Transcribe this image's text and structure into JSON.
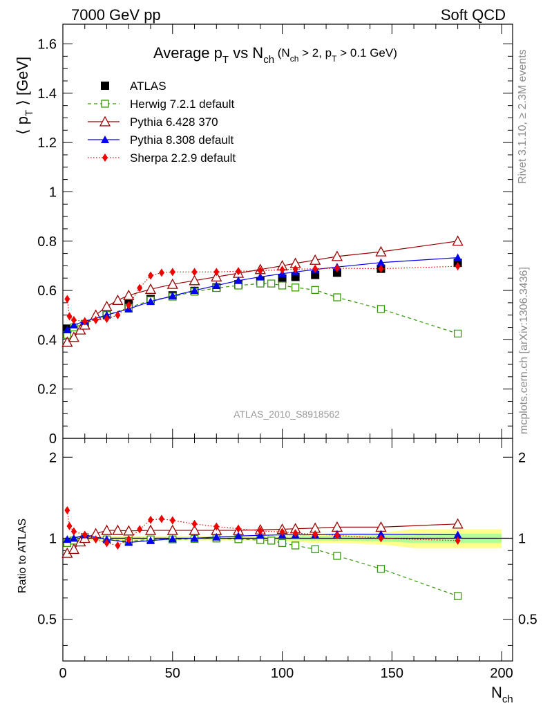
{
  "header": {
    "left": "7000 GeV pp",
    "right": "Soft QCD"
  },
  "title": {
    "main": "Average p",
    "main_sub": "T",
    "vs": " vs N",
    "vs_sub": "ch",
    "cut_open": " (N",
    "cut_sub1": "ch",
    "cut_mid": " > 2, p",
    "cut_sub2": "T",
    "cut_close": " > 0.1 GeV)"
  },
  "ylabel_main": {
    "open": "⟨ p",
    "sub": "T",
    "close": " ⟩  [GeV]"
  },
  "ylabel_ratio": "Ratio to ATLAS",
  "xlabel": {
    "main": "N",
    "sub": "ch"
  },
  "side_labels": {
    "rivet": "Rivet 3.1.10, ≥ 2.3M events",
    "mcplots": "mcplots.cern.ch [arXiv:1306.3436]"
  },
  "analysis_id": "ATLAS_2010_S8918562",
  "colors": {
    "atlas": "#000000",
    "herwig": "#339900",
    "pythia6": "#990000",
    "pythia8": "#0000ee",
    "sherpa": "#ee0000",
    "band_inner": "#b2ff99",
    "band_outer": "#ffff8c"
  },
  "legend_placement": "top-left",
  "chart_data": [
    {
      "type": "scatter",
      "panel": "main",
      "xlim": [
        0,
        205
      ],
      "ylim": [
        0,
        1.68
      ],
      "yticks": [
        0,
        0.2,
        0.4,
        0.6,
        0.8,
        1,
        1.2,
        1.4,
        1.6
      ],
      "ytick_labels": [
        "0",
        "0.2",
        "0.4",
        "0.6",
        "0.8",
        "1",
        "1.2",
        "1.4",
        "1.6"
      ],
      "series": [
        {
          "name": "ATLAS",
          "marker": "filled-square",
          "x": [
            2,
            10,
            20,
            30,
            40,
            50,
            60,
            70,
            80,
            90,
            100,
            106,
            115,
            125,
            145,
            180
          ],
          "y": [
            0.445,
            0.46,
            0.505,
            0.545,
            0.565,
            0.58,
            0.598,
            0.612,
            0.625,
            0.638,
            0.648,
            0.655,
            0.663,
            0.672,
            0.688,
            0.712
          ]
        },
        {
          "name": "Herwig 7.2.1 default",
          "marker": "open-square",
          "line": "dashed",
          "x": [
            2,
            5,
            10,
            20,
            30,
            40,
            50,
            60,
            70,
            80,
            90,
            95,
            100,
            106,
            115,
            125,
            145,
            180
          ],
          "y": [
            0.42,
            0.45,
            0.465,
            0.5,
            0.53,
            0.56,
            0.575,
            0.595,
            0.61,
            0.62,
            0.628,
            0.628,
            0.62,
            0.612,
            0.602,
            0.572,
            0.525,
            0.425
          ]
        },
        {
          "name": "Pythia 6.428 370",
          "marker": "open-triangle",
          "line": "solid",
          "x": [
            2,
            5,
            8,
            10,
            15,
            20,
            25,
            30,
            40,
            50,
            60,
            70,
            80,
            90,
            100,
            106,
            115,
            125,
            145,
            180
          ],
          "y": [
            0.39,
            0.41,
            0.44,
            0.46,
            0.5,
            0.535,
            0.56,
            0.58,
            0.605,
            0.625,
            0.64,
            0.655,
            0.67,
            0.685,
            0.7,
            0.71,
            0.723,
            0.738,
            0.757,
            0.8
          ]
        },
        {
          "name": "Pythia 8.308 default",
          "marker": "filled-triangle",
          "line": "solid",
          "x": [
            2,
            5,
            10,
            20,
            30,
            40,
            50,
            60,
            70,
            80,
            90,
            100,
            106,
            115,
            125,
            145,
            180
          ],
          "y": [
            0.44,
            0.46,
            0.475,
            0.5,
            0.525,
            0.555,
            0.578,
            0.6,
            0.62,
            0.64,
            0.655,
            0.668,
            0.675,
            0.685,
            0.695,
            0.713,
            0.733
          ]
        },
        {
          "name": "Sherpa 2.2.9 default",
          "marker": "filled-diamond",
          "line": "dotted",
          "x": [
            2,
            3,
            5,
            10,
            15,
            20,
            25,
            30,
            35,
            40,
            45,
            50,
            60,
            70,
            80,
            90,
            100,
            106,
            115,
            125,
            145,
            180
          ],
          "y": [
            0.565,
            0.495,
            0.48,
            0.475,
            0.48,
            0.485,
            0.5,
            0.54,
            0.61,
            0.66,
            0.672,
            0.675,
            0.675,
            0.675,
            0.678,
            0.68,
            0.684,
            0.686,
            0.688,
            0.69,
            0.688,
            0.698
          ]
        }
      ]
    },
    {
      "type": "scatter",
      "panel": "ratio",
      "ylabel": "Ratio to ATLAS",
      "xlabel": "Nch",
      "xlim": [
        0,
        205
      ],
      "ylim": [
        0.35,
        2.35
      ],
      "yscale": "log",
      "xticks": [
        0,
        50,
        100,
        150,
        200
      ],
      "xtick_labels": [
        "0",
        "50",
        "100",
        "150",
        "200"
      ],
      "yticks": [
        0.5,
        1,
        2
      ],
      "ytick_labels": [
        "0.5",
        "1",
        "2"
      ],
      "reference_band": {
        "x": [
          2,
          100,
          106,
          115,
          125,
          145,
          160,
          180,
          200
        ],
        "inner": [
          0.01,
          0.01,
          0.015,
          0.02,
          0.02,
          0.025,
          0.04,
          0.04,
          0.04
        ],
        "outer": [
          0.02,
          0.02,
          0.03,
          0.04,
          0.04,
          0.05,
          0.08,
          0.08,
          0.08
        ]
      },
      "series": [
        {
          "name": "Herwig 7.2.1 default",
          "x": [
            2,
            5,
            10,
            20,
            30,
            40,
            50,
            60,
            70,
            80,
            90,
            95,
            100,
            106,
            115,
            125,
            145,
            180
          ],
          "y": [
            0.96,
            0.98,
            1.01,
            0.99,
            0.975,
            0.99,
            0.99,
            0.995,
            0.998,
            0.992,
            0.985,
            0.98,
            0.96,
            0.94,
            0.91,
            0.86,
            0.77,
            0.61
          ]
        },
        {
          "name": "Pythia 6.428 370",
          "x": [
            2,
            5,
            8,
            10,
            15,
            20,
            25,
            30,
            40,
            50,
            60,
            70,
            80,
            90,
            100,
            106,
            115,
            125,
            145,
            180
          ],
          "y": [
            0.88,
            0.91,
            0.97,
            1.0,
            1.04,
            1.07,
            1.07,
            1.065,
            1.07,
            1.07,
            1.07,
            1.07,
            1.07,
            1.075,
            1.08,
            1.085,
            1.09,
            1.1,
            1.1,
            1.13
          ]
        },
        {
          "name": "Pythia 8.308 default",
          "x": [
            2,
            5,
            10,
            20,
            30,
            40,
            50,
            60,
            70,
            80,
            90,
            100,
            106,
            115,
            125,
            145,
            180
          ],
          "y": [
            0.99,
            1.0,
            1.03,
            0.99,
            0.965,
            0.98,
            0.995,
            1.0,
            1.01,
            1.02,
            1.025,
            1.03,
            1.03,
            1.03,
            1.035,
            1.035,
            1.03
          ]
        },
        {
          "name": "Sherpa 2.2.9 default",
          "x": [
            2,
            3,
            5,
            10,
            15,
            20,
            25,
            30,
            35,
            40,
            45,
            50,
            60,
            70,
            80,
            90,
            100,
            106,
            115,
            125,
            145,
            180
          ],
          "y": [
            1.27,
            1.11,
            1.06,
            1.03,
            0.99,
            0.96,
            0.94,
            0.99,
            1.08,
            1.17,
            1.18,
            1.165,
            1.13,
            1.105,
            1.085,
            1.065,
            1.055,
            1.045,
            1.035,
            1.025,
            1.0,
            0.98
          ]
        }
      ]
    }
  ]
}
